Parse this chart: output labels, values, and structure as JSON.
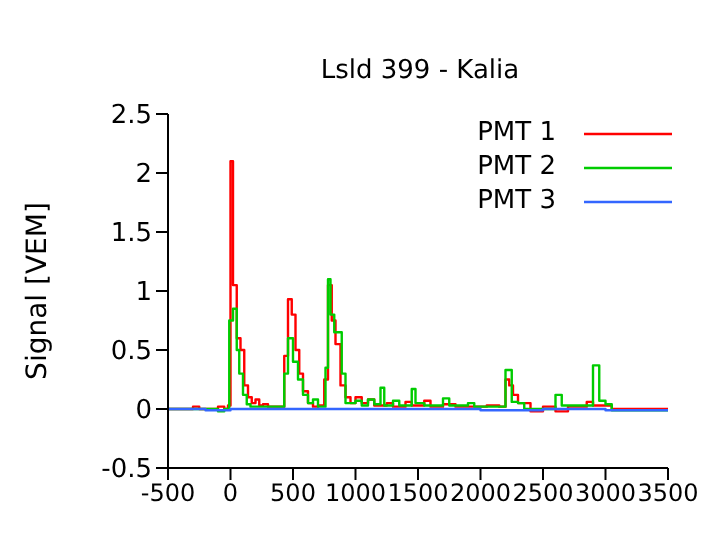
{
  "chart_data": {
    "type": "step",
    "title": "Lsld 399 - Kalia",
    "ylabel": "Signal [VEM]",
    "xlim": [
      -500,
      3500
    ],
    "xticks": [
      -500,
      0,
      500,
      1000,
      1500,
      2000,
      2500,
      3000,
      3500
    ],
    "ylim": [
      -0.5,
      2.5
    ],
    "yticks": [
      -0.5,
      0,
      0.5,
      1,
      1.5,
      2,
      2.5
    ],
    "legend": "top right",
    "marker": "none",
    "line_style": "solid",
    "series": [
      {
        "name": "PMT 1",
        "color": "#ff0000",
        "x": [
          -500,
          -300,
          -250,
          -100,
          -50,
          -20,
          0,
          20,
          50,
          80,
          110,
          140,
          170,
          200,
          230,
          260,
          300,
          400,
          430,
          460,
          490,
          520,
          550,
          580,
          620,
          660,
          700,
          750,
          780,
          810,
          840,
          880,
          920,
          960,
          1000,
          1050,
          1100,
          1150,
          1250,
          1300,
          1400,
          1450,
          1550,
          1600,
          1700,
          1800,
          2050,
          2150,
          2200,
          2230,
          2260,
          2300,
          2400,
          2500,
          2600,
          2700,
          2850,
          2900,
          3000,
          3050,
          3500
        ],
        "values": [
          0,
          0.02,
          0,
          0.02,
          0,
          0.03,
          2.1,
          1.05,
          0.6,
          0.5,
          0.2,
          0.1,
          0.05,
          0.08,
          0.03,
          0.04,
          0.02,
          0.02,
          0.45,
          0.93,
          0.8,
          0.5,
          0.3,
          0.15,
          0.05,
          0.02,
          0.03,
          0.25,
          1.05,
          0.75,
          0.55,
          0.2,
          0.1,
          0.05,
          0.1,
          0.05,
          0.08,
          0.03,
          0.05,
          0.02,
          0.06,
          0.03,
          0.07,
          0.02,
          0.04,
          0.02,
          0.03,
          0.02,
          0.25,
          0.2,
          0.12,
          0.05,
          -0.02,
          0.02,
          -0.02,
          0.02,
          0.06,
          0.03,
          0.03,
          0,
          0
        ]
      },
      {
        "name": "PMT 2",
        "color": "#00cc00",
        "x": [
          -500,
          -100,
          -50,
          -10,
          20,
          50,
          70,
          100,
          130,
          160,
          200,
          430,
          460,
          500,
          540,
          580,
          620,
          660,
          700,
          760,
          780,
          800,
          830,
          860,
          890,
          920,
          1000,
          1050,
          1100,
          1150,
          1200,
          1230,
          1300,
          1350,
          1450,
          1480,
          1550,
          1700,
          1750,
          1900,
          1950,
          2200,
          2250,
          2300,
          2350,
          2600,
          2650,
          2900,
          2950,
          3000,
          3050,
          3500
        ],
        "values": [
          0,
          -0.02,
          0,
          0.75,
          0.85,
          0.5,
          0.3,
          0.12,
          0.04,
          0.02,
          0.02,
          0.3,
          0.6,
          0.4,
          0.25,
          0.12,
          0.05,
          0.08,
          0.02,
          0.35,
          1.1,
          0.8,
          0.65,
          0.65,
          0.3,
          0.05,
          0.07,
          0.03,
          0.08,
          0.04,
          0.18,
          0.03,
          0.07,
          0.03,
          0.17,
          0.05,
          0.03,
          0.09,
          0.03,
          0.05,
          0.02,
          0.33,
          0.06,
          0.05,
          0,
          0.12,
          0.03,
          0.37,
          0.07,
          0.04,
          -0.01,
          0
        ]
      },
      {
        "name": "PMT 3",
        "color": "#3366ff",
        "x": [
          -500,
          -200,
          0,
          500,
          1000,
          1500,
          2000,
          2500,
          3000,
          3500
        ],
        "values": [
          0,
          -0.01,
          0,
          0,
          0,
          0,
          -0.01,
          0,
          -0.01,
          0
        ]
      }
    ]
  }
}
